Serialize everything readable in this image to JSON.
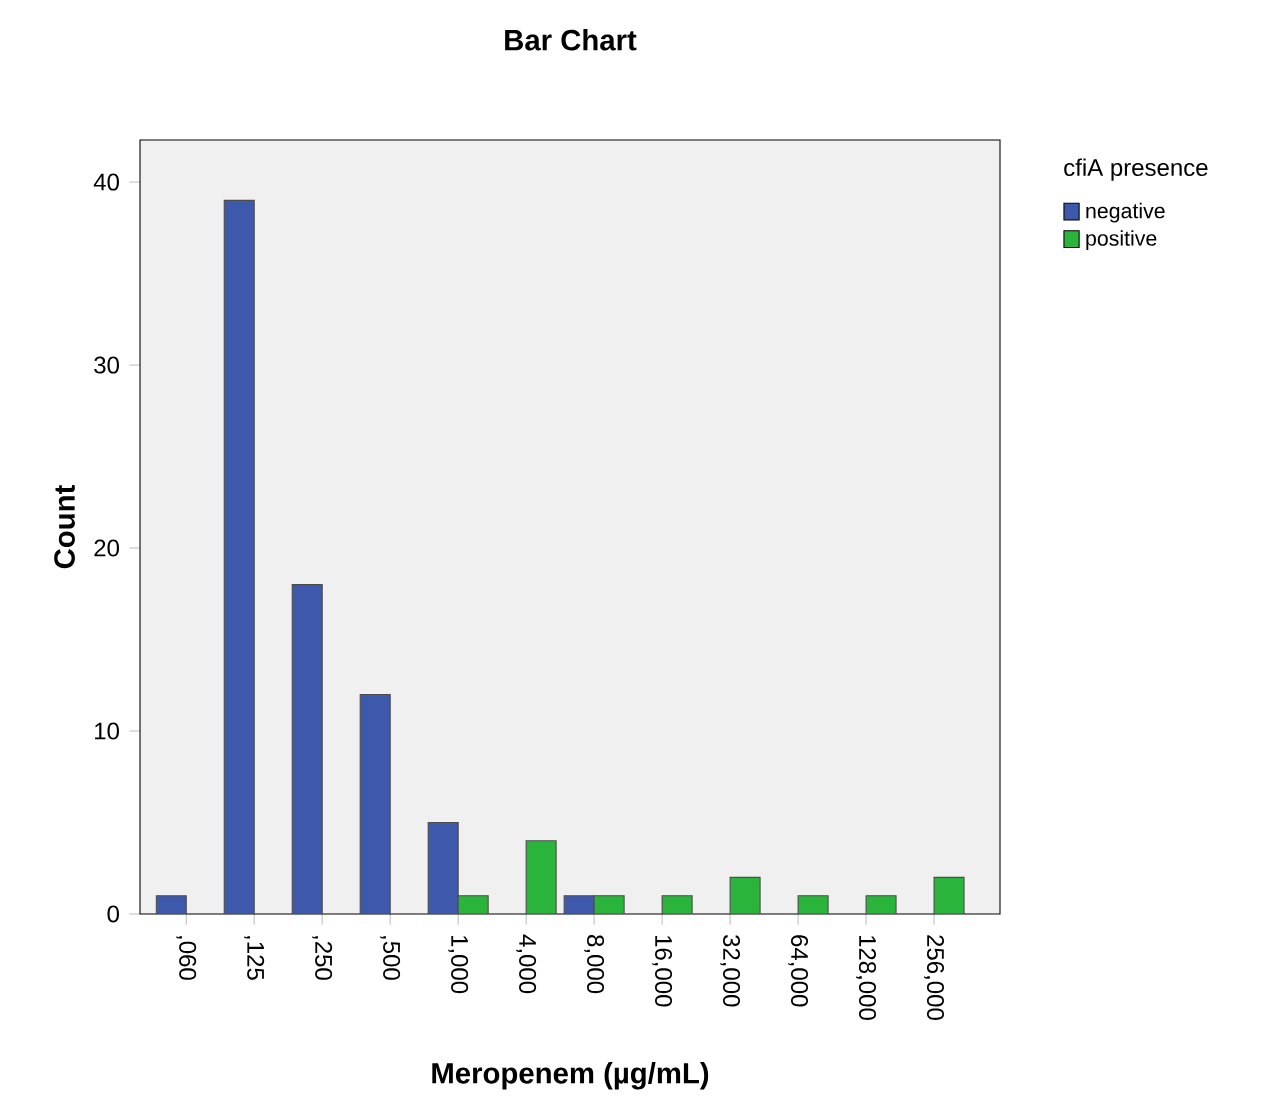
{
  "chart_data": {
    "type": "bar",
    "title": "Bar Chart",
    "xlabel": "Meropenem (µg/mL)",
    "ylabel": "Count",
    "legend_title": "cfiA presence",
    "categories": [
      ",060",
      ",125",
      ",250",
      ",500",
      "1,000",
      "4,000",
      "8,000",
      "16,000",
      "32,000",
      "64,000",
      "128,000",
      "256,000"
    ],
    "series": [
      {
        "name": "negative",
        "color": "#3e58ac",
        "values": [
          1,
          39,
          18,
          12,
          5,
          null,
          1,
          null,
          null,
          null,
          null,
          null
        ]
      },
      {
        "name": "positive",
        "color": "#2ab43c",
        "values": [
          null,
          null,
          null,
          null,
          1,
          4,
          1,
          1,
          2,
          1,
          1,
          2
        ]
      }
    ],
    "ylim": [
      0,
      42.3
    ],
    "yticks": [
      0,
      10,
      20,
      30,
      40
    ],
    "grid": false,
    "legend": "right"
  }
}
